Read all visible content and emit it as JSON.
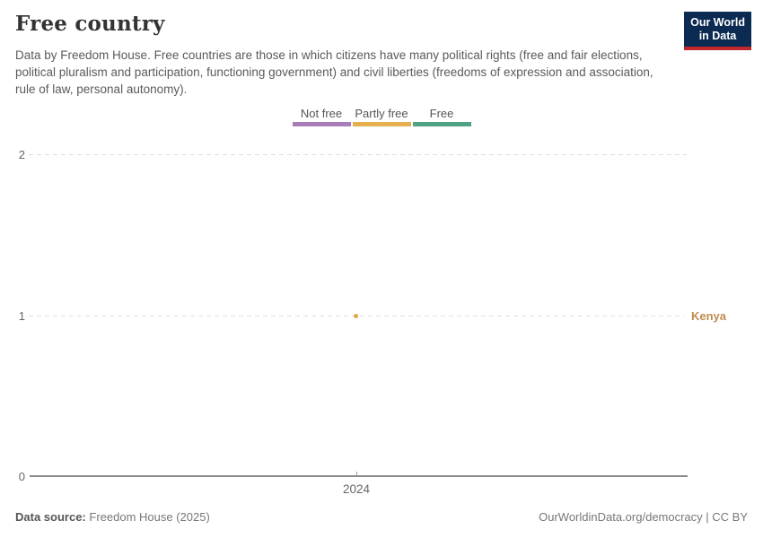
{
  "header": {
    "title": "Free country",
    "subtitle": "Data by Freedom House. Free countries are those in which citizens have many political rights (free and fair elections, political pluralism and participation, functioning government) and civil liberties (freedoms of expression and association, rule of law, personal autonomy).",
    "logo": {
      "line1": "Our World",
      "line2": "in Data",
      "bg_color": "#0b2b52",
      "stripe_color": "#c0282d"
    }
  },
  "legend": {
    "items": [
      {
        "label": "Not free",
        "color": "#a87cb8"
      },
      {
        "label": "Partly free",
        "color": "#e7b04e"
      },
      {
        "label": "Free",
        "color": "#4fa383"
      }
    ]
  },
  "chart_data": {
    "type": "scatter",
    "title": "Free country",
    "x": [
      2024
    ],
    "series": [
      {
        "name": "Kenya",
        "values": [
          1
        ]
      }
    ],
    "point_color": "#e0a84e",
    "entity_label_color": "#bf8b4e",
    "ylim": [
      0,
      2
    ],
    "yticks": [
      0,
      1,
      2
    ],
    "xticks": [
      2024
    ],
    "grid": "horizontal-dashed",
    "legend_position": "top-center",
    "value_categories": {
      "0": "Not free",
      "1": "Partly free",
      "2": "Free"
    }
  },
  "footer": {
    "source_label": "Data source:",
    "source_value": "Freedom House (2025)",
    "right_text": "OurWorldinData.org/democracy | CC BY"
  }
}
